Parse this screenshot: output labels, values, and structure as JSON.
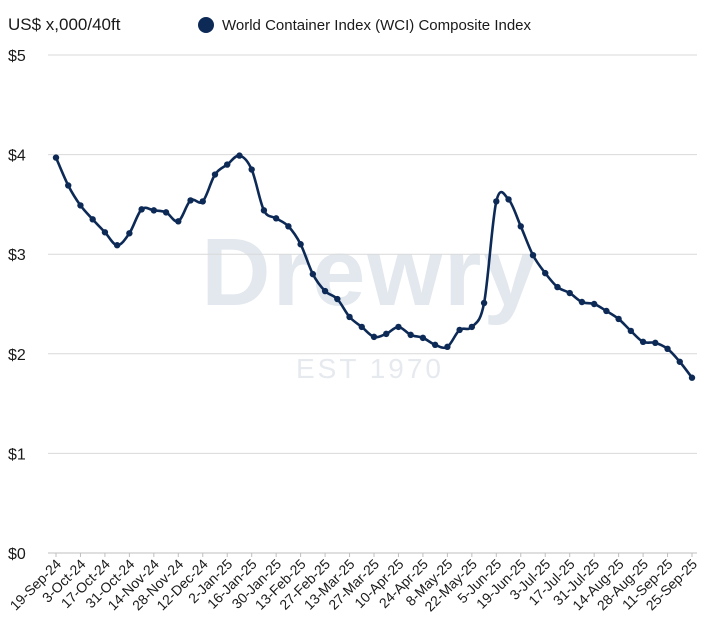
{
  "chart_data": {
    "type": "line",
    "ylabel": "US$ x,000/40ft",
    "legend": {
      "placement": "top",
      "entries": [
        "World Container Index (WCI) Composite Index"
      ]
    },
    "watermark": {
      "brand": "Drewry",
      "tagline": "EST 1970"
    },
    "ylim": [
      0,
      5
    ],
    "yticks": [
      0,
      1,
      2,
      3,
      4,
      5
    ],
    "ytick_labels": [
      "$0",
      "$1",
      "$2",
      "$3",
      "$4",
      "$5"
    ],
    "grid": true,
    "color": "#0d2a57",
    "x_tick_labels": [
      "19-Sep-24",
      "3-Oct-24",
      "17-Oct-24",
      "31-Oct-24",
      "14-Nov-24",
      "28-Nov-24",
      "12-Dec-24",
      "2-Jan-25",
      "16-Jan-25",
      "30-Jan-25",
      "13-Feb-25",
      "27-Feb-25",
      "13-Mar-25",
      "27-Mar-25",
      "10-Apr-25",
      "24-Apr-25",
      "8-May-25",
      "22-May-25",
      "5-Jun-25",
      "19-Jun-25",
      "3-Jul-25",
      "17-Jul-25",
      "31-Jul-25",
      "14-Aug-25",
      "28-Aug-25",
      "11-Sep-25",
      "25-Sep-25"
    ],
    "series": [
      {
        "name": "World Container Index (WCI) Composite Index",
        "values": [
          3.97,
          3.69,
          3.49,
          3.35,
          3.22,
          3.09,
          3.21,
          3.45,
          3.44,
          3.42,
          3.33,
          3.54,
          3.53,
          3.8,
          3.9,
          3.99,
          3.85,
          3.44,
          3.36,
          3.28,
          3.1,
          2.8,
          2.63,
          2.55,
          2.37,
          2.27,
          2.17,
          2.2,
          2.27,
          2.19,
          2.16,
          2.09,
          2.07,
          2.24,
          2.27,
          2.51,
          3.53,
          3.55,
          3.28,
          2.99,
          2.81,
          2.67,
          2.61,
          2.52,
          2.5,
          2.43,
          2.35,
          2.23,
          2.12,
          2.11,
          2.05,
          1.92,
          1.76
        ]
      }
    ]
  }
}
